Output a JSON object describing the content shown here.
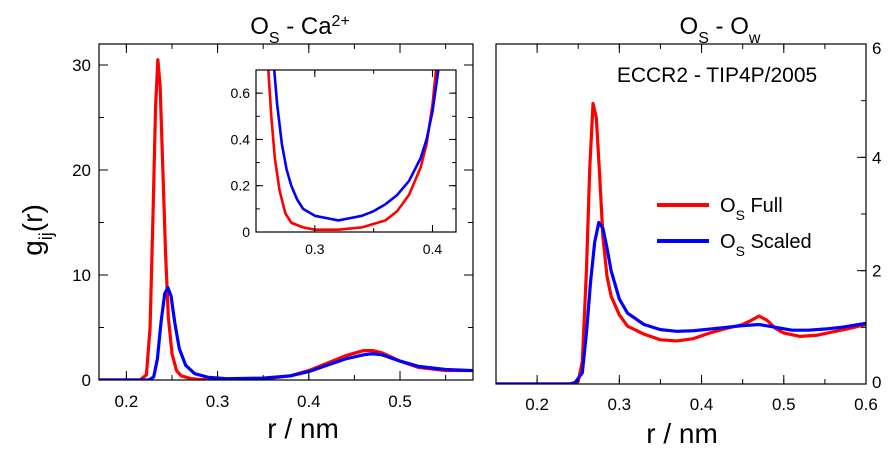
{
  "chart_data": [
    {
      "type": "line",
      "title": {
        "main": "O",
        "sub": "S",
        "rest": " - Ca",
        "sup": "2+"
      },
      "xlabel": "r / nm",
      "ylabel": {
        "main": "g",
        "sub": "ij",
        "rest": "(r)"
      },
      "xlim": [
        0.17,
        0.58
      ],
      "ylim": [
        0,
        32
      ],
      "xticks": [
        0.2,
        0.3,
        0.4,
        0.5
      ],
      "xtick_labels": [
        "0.2",
        "0.3",
        "0.4",
        "0.5"
      ],
      "yticks": [
        0,
        10,
        20,
        30
      ],
      "ytick_labels": [
        "0",
        "10",
        "20",
        "30"
      ],
      "series": [
        {
          "color": "#ff0000",
          "x": [
            0.17,
            0.215,
            0.222,
            0.226,
            0.229,
            0.232,
            0.2345,
            0.237,
            0.24,
            0.243,
            0.246,
            0.25,
            0.255,
            0.26,
            0.27,
            0.28,
            0.3,
            0.32,
            0.35,
            0.38,
            0.4,
            0.42,
            0.44,
            0.46,
            0.47,
            0.48,
            0.5,
            0.52,
            0.55,
            0.58
          ],
          "y": [
            0,
            0,
            0.5,
            5,
            15,
            26,
            30.5,
            28,
            20,
            12,
            6,
            2.5,
            0.9,
            0.4,
            0.15,
            0.05,
            0.03,
            0.03,
            0.1,
            0.4,
            0.9,
            1.6,
            2.3,
            2.8,
            2.8,
            2.6,
            1.8,
            1.2,
            0.9,
            0.9
          ]
        },
        {
          "color": "#0000ff",
          "x": [
            0.17,
            0.225,
            0.23,
            0.234,
            0.238,
            0.242,
            0.2455,
            0.249,
            0.253,
            0.258,
            0.265,
            0.275,
            0.29,
            0.31,
            0.35,
            0.38,
            0.4,
            0.42,
            0.44,
            0.46,
            0.47,
            0.48,
            0.5,
            0.52,
            0.55,
            0.58
          ],
          "y": [
            0,
            0,
            0.3,
            2,
            5.5,
            8.2,
            8.8,
            8,
            5.5,
            3,
            1.4,
            0.6,
            0.25,
            0.12,
            0.18,
            0.4,
            0.8,
            1.4,
            2,
            2.4,
            2.5,
            2.4,
            1.8,
            1.3,
            1,
            0.9
          ]
        }
      ],
      "inset": {
        "xlim": [
          0.25,
          0.42
        ],
        "ylim": [
          0,
          0.7
        ],
        "xticks": [
          0.3,
          0.4
        ],
        "xtick_labels": [
          "0.3",
          "0.4"
        ],
        "yticks": [
          0,
          0.2,
          0.4,
          0.6
        ],
        "ytick_labels": [
          "0",
          "0.2",
          "0.4",
          "0.6"
        ],
        "series": [
          {
            "color": "#ff0000",
            "x": [
              0.2605,
              0.263,
              0.266,
              0.27,
              0.275,
              0.28,
              0.29,
              0.3,
              0.31,
              0.32,
              0.34,
              0.36,
              0.37,
              0.38,
              0.39,
              0.395,
              0.4,
              0.403
            ],
            "y": [
              0.7,
              0.5,
              0.32,
              0.18,
              0.08,
              0.04,
              0.02,
              0.01,
              0.01,
              0.01,
              0.02,
              0.05,
              0.09,
              0.16,
              0.28,
              0.38,
              0.55,
              0.7
            ]
          },
          {
            "color": "#0000ff",
            "x": [
              0.2655,
              0.268,
              0.272,
              0.276,
              0.28,
              0.285,
              0.29,
              0.3,
              0.31,
              0.32,
              0.33,
              0.34,
              0.35,
              0.36,
              0.37,
              0.38,
              0.39,
              0.395,
              0.4,
              0.405
            ],
            "y": [
              0.7,
              0.55,
              0.38,
              0.27,
              0.2,
              0.14,
              0.1,
              0.07,
              0.06,
              0.05,
              0.06,
              0.07,
              0.09,
              0.12,
              0.16,
              0.22,
              0.32,
              0.4,
              0.52,
              0.7
            ]
          }
        ]
      }
    },
    {
      "type": "line",
      "title": {
        "main": "O",
        "sub": "S",
        "rest": " - O",
        "sub2": "w"
      },
      "xlabel": "r / nm",
      "annotation": "ECCR2 - TIP4P/2005",
      "xlim": [
        0.15,
        0.6
      ],
      "ylim": [
        0,
        6
      ],
      "xticks": [
        0.2,
        0.3,
        0.4,
        0.5,
        0.6
      ],
      "xtick_labels": [
        "0.2",
        "0.3",
        "0.4",
        "0.5",
        "0.6"
      ],
      "yticks": [
        0,
        2,
        4,
        6
      ],
      "ytick_labels": [
        "0",
        "2",
        "4",
        "6"
      ],
      "legend_position": "center-right",
      "series": [
        {
          "name": "Full",
          "label": {
            "main": "O",
            "sub": "S",
            "rest": " Full"
          },
          "color": "#ff0000",
          "x": [
            0.15,
            0.24,
            0.25,
            0.255,
            0.26,
            0.264,
            0.268,
            0.272,
            0.276,
            0.28,
            0.285,
            0.29,
            0.3,
            0.31,
            0.33,
            0.35,
            0.37,
            0.39,
            0.41,
            0.43,
            0.45,
            0.46,
            0.47,
            0.48,
            0.49,
            0.5,
            0.52,
            0.54,
            0.56,
            0.58,
            0.6
          ],
          "y": [
            0,
            0,
            0.05,
            0.4,
            2,
            3.8,
            4.95,
            4.7,
            3.7,
            2.6,
            1.9,
            1.55,
            1.22,
            1.02,
            0.88,
            0.78,
            0.76,
            0.8,
            0.9,
            0.98,
            1.05,
            1.12,
            1.2,
            1.12,
            0.98,
            0.9,
            0.84,
            0.86,
            0.92,
            0.98,
            1.05
          ]
        },
        {
          "name": "Scaled",
          "label": {
            "main": "O",
            "sub": "S",
            "rest": " Scaled"
          },
          "color": "#0000ff",
          "x": [
            0.15,
            0.245,
            0.255,
            0.26,
            0.265,
            0.27,
            0.275,
            0.28,
            0.285,
            0.29,
            0.3,
            0.31,
            0.33,
            0.35,
            0.37,
            0.39,
            0.41,
            0.43,
            0.45,
            0.47,
            0.49,
            0.51,
            0.53,
            0.55,
            0.57,
            0.6
          ],
          "y": [
            0,
            0,
            0.2,
            0.9,
            1.8,
            2.5,
            2.85,
            2.75,
            2.4,
            2.0,
            1.5,
            1.25,
            1.05,
            0.96,
            0.93,
            0.94,
            0.97,
            1.0,
            1.03,
            1.05,
            1.0,
            0.95,
            0.95,
            0.97,
            1.0,
            1.07
          ]
        }
      ]
    }
  ]
}
